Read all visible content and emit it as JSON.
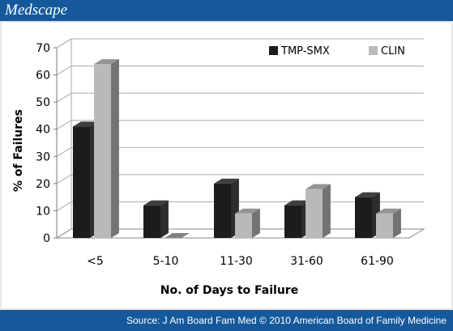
{
  "header": {
    "logo_text": "Medscape"
  },
  "footer": {
    "source_text": "Source: J Am Board Fam Med © 2010 American Board of Family Medicine"
  },
  "colors": {
    "brand_bar": "#15599c",
    "tmp_smx": "#1c1c1c",
    "clin": "#b9b9b9"
  },
  "chart_data": {
    "type": "bar",
    "xlabel": "No. of Days to Failure",
    "ylabel": "% of Failures",
    "categories": [
      "<5",
      "5-10",
      "11-30",
      "31-60",
      "61-90"
    ],
    "series": [
      {
        "name": "TMP-SMX",
        "values": [
          41,
          12,
          20,
          12,
          15
        ]
      },
      {
        "name": "CLIN",
        "values": [
          64,
          0,
          9,
          18,
          9
        ]
      }
    ],
    "ylim": [
      0,
      70
    ],
    "yticks": [
      "0",
      "10",
      "20",
      "30",
      "40",
      "50",
      "60",
      "70"
    ],
    "grid": true,
    "legend_position": "top-right",
    "style": "3d-clustered-column"
  }
}
